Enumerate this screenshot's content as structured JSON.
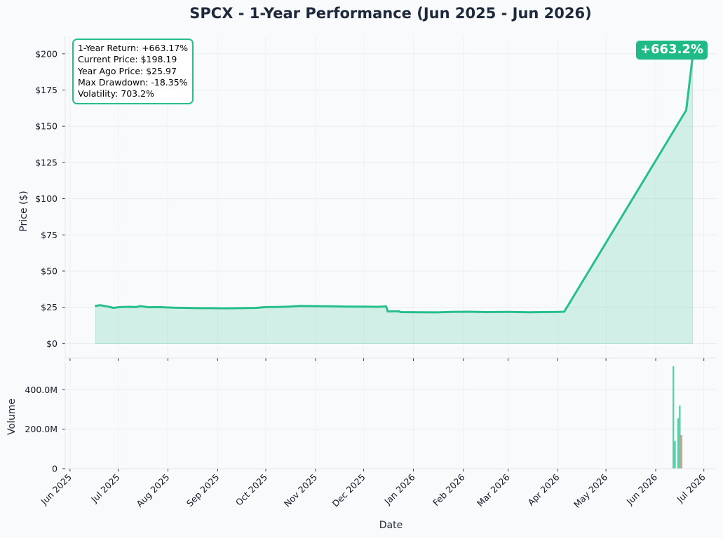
{
  "page_title": "SPCX - 1-Year Performance (Jun 2025 - Jun 2026)",
  "stats": {
    "lines": [
      "1-Year Return: +663.17%",
      "Current Price: $198.19",
      "Year Ago Price: $25.97",
      "Max Drawdown: -18.35%",
      "Volatility: 703.2%"
    ]
  },
  "badge": {
    "text": "+663.2%"
  },
  "colors": {
    "line": "#26bf8a",
    "fill": "#26bf8a",
    "volume_up": "#26bf8a",
    "volume_down": "#e0705f",
    "title": "#1e293b",
    "background": "#f8fafc"
  },
  "chart_data": [
    {
      "type": "area",
      "title": "SPCX - 1-Year Performance (Jun 2025 - Jun 2026)",
      "ylabel": "Price ($)",
      "xlabel": "",
      "ylim": [
        -10,
        212
      ],
      "ytick_values": [
        0,
        25,
        50,
        75,
        100,
        125,
        150,
        175,
        200
      ],
      "ytick_labels": [
        "$0",
        "$25",
        "$50",
        "$75",
        "$100",
        "$125",
        "$150",
        "$175",
        "$200"
      ],
      "grid": true,
      "series": [
        {
          "x": [
            "2025-06-17",
            "2025-06-20",
            "2025-06-25",
            "2025-06-28",
            "2025-07-02",
            "2025-07-08",
            "2025-07-12",
            "2025-07-15",
            "2025-07-20",
            "2025-07-25",
            "2025-07-30",
            "2025-08-05",
            "2025-08-12",
            "2025-08-20",
            "2025-08-28",
            "2025-09-05",
            "2025-09-15",
            "2025-09-25",
            "2025-10-01",
            "2025-10-08",
            "2025-10-15",
            "2025-10-22",
            "2025-11-01",
            "2025-11-10",
            "2025-11-20",
            "2025-12-01",
            "2025-12-10",
            "2025-12-15",
            "2025-12-16",
            "2025-12-23",
            "2025-12-24",
            "2026-01-05",
            "2026-01-15",
            "2026-01-25",
            "2026-02-05",
            "2026-02-15",
            "2026-03-01",
            "2026-03-15",
            "2026-04-01",
            "2026-04-05",
            "2026-06-20",
            "2026-06-24"
          ],
          "values": [
            25.97,
            26.4,
            25.4,
            24.6,
            25.1,
            25.3,
            25.1,
            25.8,
            25.0,
            25.1,
            24.9,
            24.7,
            24.6,
            24.4,
            24.4,
            24.3,
            24.4,
            24.6,
            25.1,
            25.2,
            25.4,
            25.9,
            25.8,
            25.7,
            25.5,
            25.4,
            25.3,
            25.6,
            22.1,
            22.2,
            21.7,
            21.6,
            21.5,
            21.8,
            21.9,
            21.7,
            21.8,
            21.6,
            21.8,
            21.9,
            161.0,
            198.19
          ]
        }
      ]
    },
    {
      "type": "bar",
      "xlabel": "Date",
      "ylabel": "Volume",
      "ylim": [
        0,
        540000000
      ],
      "ytick_values": [
        0,
        200000000,
        400000000
      ],
      "ytick_labels": [
        "0",
        "200.0M",
        "400.0M"
      ],
      "x_ticks": [
        "Jun 2025",
        "Jul 2025",
        "Aug 2025",
        "Sep 2025",
        "Oct 2025",
        "Nov 2025",
        "Dec 2025",
        "Jan 2026",
        "Feb 2026",
        "Mar 2026",
        "Apr 2026",
        "May 2026",
        "Jun 2026",
        "Jul 2026"
      ],
      "x_tick_dates": [
        "2025-06-01",
        "2025-07-01",
        "2025-08-01",
        "2025-09-01",
        "2025-10-01",
        "2025-11-01",
        "2025-12-01",
        "2026-01-01",
        "2026-02-01",
        "2026-03-01",
        "2026-04-01",
        "2026-05-01",
        "2026-06-01",
        "2026-07-01"
      ],
      "grid": true,
      "bars": [
        {
          "date": "2026-06-12",
          "value": 520000000,
          "direction": "up"
        },
        {
          "date": "2026-06-13",
          "value": 140000000,
          "direction": "up"
        },
        {
          "date": "2026-06-15",
          "value": 255000000,
          "direction": "up"
        },
        {
          "date": "2026-06-16",
          "value": 320000000,
          "direction": "up"
        },
        {
          "date": "2026-06-17",
          "value": 170000000,
          "direction": "down"
        }
      ]
    }
  ]
}
